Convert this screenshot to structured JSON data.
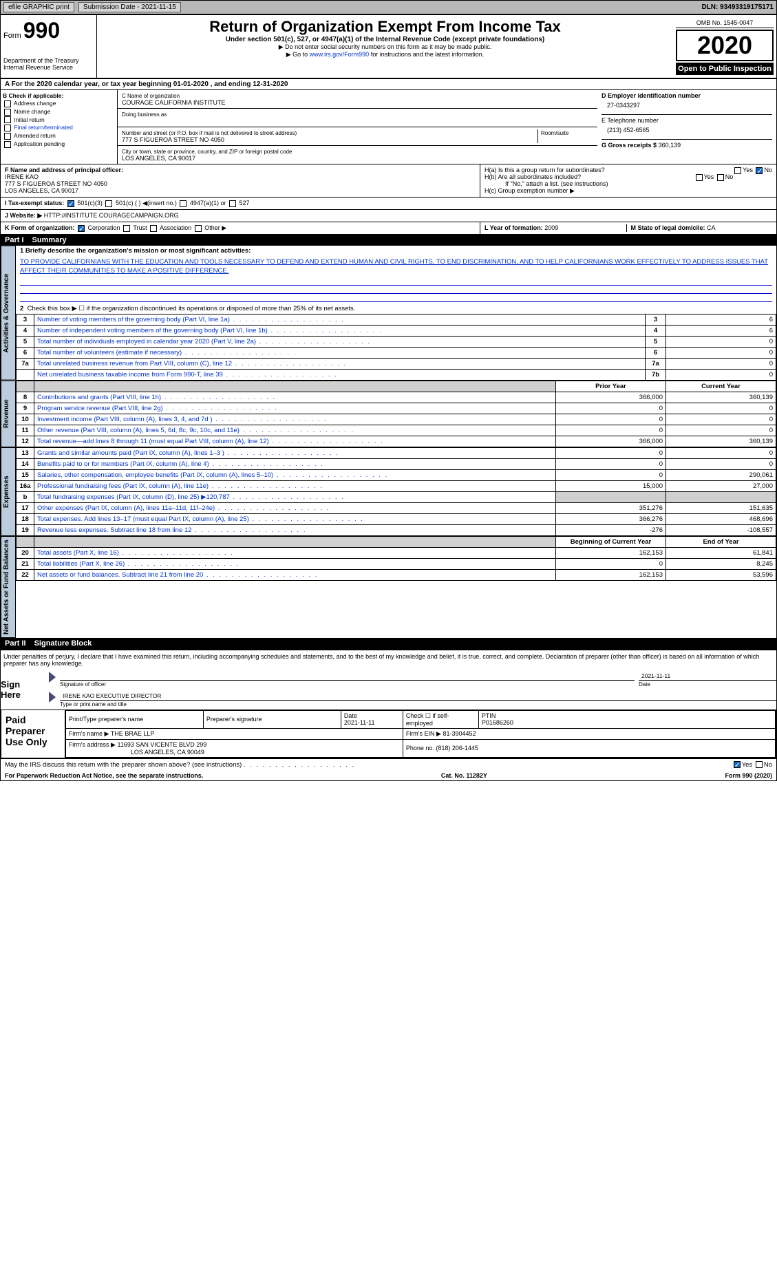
{
  "topbar": {
    "efile": "efile GRAPHIC print",
    "subdate_lbl": "Submission Date - 2021-11-15",
    "dln": "DLN: 93493319175171"
  },
  "header": {
    "form": "990",
    "title": "Return of Organization Exempt From Income Tax",
    "subtitle": "Under section 501(c), 527, or 4947(a)(1) of the Internal Revenue Code (except private foundations)",
    "note1": "▶ Do not enter social security numbers on this form as it may be made public.",
    "note2_pre": "▶ Go to ",
    "note2_link": "www.irs.gov/Form990",
    "note2_post": " for instructions and the latest information.",
    "dept": "Department of the Treasury\nInternal Revenue Service",
    "omb": "OMB No. 1545-0047",
    "year": "2020",
    "inspect": "Open to Public Inspection"
  },
  "lineA": "A For the 2020 calendar year, or tax year beginning 01-01-2020    , and ending 12-31-2020",
  "colB": {
    "hdr": "B Check if applicable:",
    "items": [
      "Address change",
      "Name change",
      "Initial return",
      "Final return/terminated",
      "Amended return",
      "Application pending"
    ]
  },
  "colC": {
    "name_lbl": "C Name of organization",
    "name": "COURAGE CALIFORNIA INSTITUTE",
    "dba_lbl": "Doing business as",
    "dba": "",
    "street_lbl": "Number and street (or P.O. box if mail is not delivered to street address)",
    "room_lbl": "Room/suite",
    "street": "777 S FIGUEROA STREET NO 4050",
    "city_lbl": "City or town, state or province, country, and ZIP or foreign postal code",
    "city": "LOS ANGELES, CA  90017"
  },
  "colD": {
    "ein_lbl": "D Employer identification number",
    "ein": "27-0343297",
    "tel_lbl": "E Telephone number",
    "tel": "(213) 452-6565",
    "gross_lbl": "G Gross receipts $",
    "gross": "360,139"
  },
  "officer": {
    "lbl": "F  Name and address of principal officer:",
    "name": "IRENE KAO",
    "addr1": "777 S FIGUEROA STREET NO 4050",
    "addr2": "LOS ANGELES, CA  90017"
  },
  "h": {
    "a": "H(a)  Is this a group return for subordinates?",
    "b": "H(b)  Are all subordinates included?",
    "bnote": "If \"No,\" attach a list. (see instructions)",
    "c": "H(c)  Group exemption number ▶"
  },
  "taxstatus": {
    "lbl": "I  Tax-exempt status:",
    "opts": [
      "501(c)(3)",
      "501(c) (  ) ◀(insert no.)",
      "4947(a)(1) or",
      "527"
    ]
  },
  "website": {
    "lbl": "J  Website: ▶",
    "val": "HTTP://INSTITUTE.COURAGECAMPAIGN.ORG"
  },
  "k": {
    "lbl": "K Form of organization:",
    "opts": [
      "Corporation",
      "Trust",
      "Association",
      "Other ▶"
    ]
  },
  "l": {
    "lbl": "L Year of formation:",
    "val": "2009"
  },
  "m": {
    "lbl": "M State of legal domicile:",
    "val": "CA"
  },
  "part1": {
    "num": "Part I",
    "title": "Summary"
  },
  "mission_lbl": "1  Briefly describe the organization's mission or most significant activities:",
  "mission": "TO PROVIDE CALIFORNIANS WITH THE EDUCATION AND TOOLS NECESSARY TO DEFEND AND EXTEND HUMAN AND CIVIL RIGHTS, TO END DISCRIMINATION, AND TO HELP CALIFORNIANS WORK EFFECTIVELY TO ADDRESS ISSUES THAT AFFECT THEIR COMMUNITIES TO MAKE A POSITIVE DIFFERENCE.",
  "line2": "Check this box ▶ ☐ if the organization discontinued its operations or disposed of more than 25% of its net assets.",
  "gov_rows": [
    {
      "n": "3",
      "t": "Number of voting members of the governing body (Part VI, line 1a)",
      "rn": "3",
      "v": "6"
    },
    {
      "n": "4",
      "t": "Number of independent voting members of the governing body (Part VI, line 1b)",
      "rn": "4",
      "v": "6"
    },
    {
      "n": "5",
      "t": "Total number of individuals employed in calendar year 2020 (Part V, line 2a)",
      "rn": "5",
      "v": "0"
    },
    {
      "n": "6",
      "t": "Total number of volunteers (estimate if necessary)",
      "rn": "6",
      "v": "0"
    },
    {
      "n": "7a",
      "t": "Total unrelated business revenue from Part VIII, column (C), line 12",
      "rn": "7a",
      "v": "0"
    },
    {
      "n": "",
      "t": "Net unrelated business taxable income from Form 990-T, line 39",
      "rn": "7b",
      "v": "0"
    }
  ],
  "py": "Prior Year",
  "cy": "Current Year",
  "rev_rows": [
    {
      "n": "8",
      "t": "Contributions and grants (Part VIII, line 1h)",
      "p": "366,000",
      "c": "360,139"
    },
    {
      "n": "9",
      "t": "Program service revenue (Part VIII, line 2g)",
      "p": "0",
      "c": "0"
    },
    {
      "n": "10",
      "t": "Investment income (Part VIII, column (A), lines 3, 4, and 7d )",
      "p": "0",
      "c": "0"
    },
    {
      "n": "11",
      "t": "Other revenue (Part VIII, column (A), lines 5, 6d, 8c, 9c, 10c, and 11e)",
      "p": "0",
      "c": "0"
    },
    {
      "n": "12",
      "t": "Total revenue—add lines 8 through 11 (must equal Part VIII, column (A), line 12)",
      "p": "366,000",
      "c": "360,139"
    }
  ],
  "exp_rows": [
    {
      "n": "13",
      "t": "Grants and similar amounts paid (Part IX, column (A), lines 1–3 )",
      "p": "0",
      "c": "0"
    },
    {
      "n": "14",
      "t": "Benefits paid to or for members (Part IX, column (A), line 4)",
      "p": "0",
      "c": "0"
    },
    {
      "n": "15",
      "t": "Salaries, other compensation, employee benefits (Part IX, column (A), lines 5–10)",
      "p": "0",
      "c": "290,061"
    },
    {
      "n": "16a",
      "t": "Professional fundraising fees (Part IX, column (A), line 11e)",
      "p": "15,000",
      "c": "27,000"
    },
    {
      "n": "b",
      "t": "Total fundraising expenses (Part IX, column (D), line 25) ▶120,787",
      "p": "",
      "c": ""
    },
    {
      "n": "17",
      "t": "Other expenses (Part IX, column (A), lines 11a–11d, 11f–24e)",
      "p": "351,276",
      "c": "151,635"
    },
    {
      "n": "18",
      "t": "Total expenses. Add lines 13–17 (must equal Part IX, column (A), line 25)",
      "p": "366,276",
      "c": "468,696"
    },
    {
      "n": "19",
      "t": "Revenue less expenses. Subtract line 18 from line 12",
      "p": "-276",
      "c": "-108,557"
    }
  ],
  "boy": "Beginning of Current Year",
  "eoy": "End of Year",
  "net_rows": [
    {
      "n": "20",
      "t": "Total assets (Part X, line 16)",
      "p": "162,153",
      "c": "61,841"
    },
    {
      "n": "21",
      "t": "Total liabilities (Part X, line 26)",
      "p": "0",
      "c": "8,245"
    },
    {
      "n": "22",
      "t": "Net assets or fund balances. Subtract line 21 from line 20",
      "p": "162,153",
      "c": "53,596"
    }
  ],
  "part2": {
    "num": "Part II",
    "title": "Signature Block"
  },
  "penalties": "Under penalties of perjury, I declare that I have examined this return, including accompanying schedules and statements, and to the best of my knowledge and belief, it is true, correct, and complete. Declaration of preparer (other than officer) is based on all information of which preparer has any knowledge.",
  "sig": {
    "here": "Sign Here",
    "date": "2021-11-11",
    "sig_lbl": "Signature of officer",
    "date_lbl": "Date",
    "name": "IRENE KAO  EXECUTIVE DIRECTOR",
    "name_lbl": "Type or print name and title"
  },
  "prep": {
    "lab": "Paid Preparer Use Only",
    "h1": "Print/Type preparer's name",
    "h2": "Preparer's signature",
    "h3": "Date",
    "h3v": "2021-11-11",
    "h4": "Check ☐ if self-employed",
    "h5": "PTIN",
    "h5v": "P01686260",
    "firm_lbl": "Firm's name    ▶",
    "firm": "THE BRAE LLP",
    "ein_lbl": "Firm's EIN ▶",
    "ein": "81-3904452",
    "addr_lbl": "Firm's address ▶",
    "addr": "11693 SAN VICENTE BLVD 299",
    "addr2": "LOS ANGELES, CA  90049",
    "phone_lbl": "Phone no.",
    "phone": "(818) 206-1445"
  },
  "discuss": "May the IRS discuss this return with the preparer shown above? (see instructions)",
  "foot": {
    "l": "For Paperwork Reduction Act Notice, see the separate instructions.",
    "m": "Cat. No. 11282Y",
    "r": "Form 990 (2020)"
  },
  "sidelabels": {
    "gov": "Activities & Governance",
    "rev": "Revenue",
    "exp": "Expenses",
    "net": "Net Assets or Fund Balances"
  }
}
